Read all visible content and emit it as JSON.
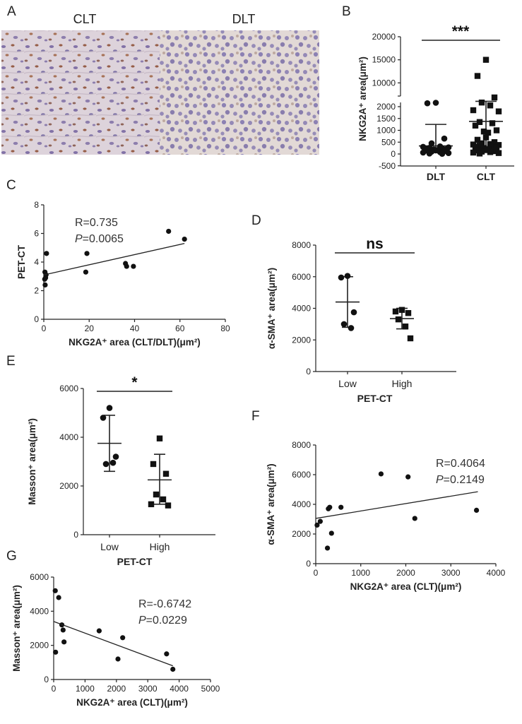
{
  "panels": {
    "A": {
      "letter": "A",
      "left_label": "CLT",
      "right_label": "DLT"
    },
    "B": {
      "letter": "B"
    },
    "C": {
      "letter": "C"
    },
    "D": {
      "letter": "D"
    },
    "E": {
      "letter": "E"
    },
    "F": {
      "letter": "F"
    },
    "G": {
      "letter": "G"
    }
  },
  "colors": {
    "ink": "#111111",
    "tissue_light": "#d8cfd6",
    "nuclei": "#6b5a9a",
    "stain_brown": "#8a4a2e"
  },
  "chart_data": [
    {
      "id": "B",
      "type": "scatter",
      "ylabel": "NKG2A⁺ area(μm²)",
      "categories": [
        "DLT",
        "CLT"
      ],
      "yticks_lower": [
        "-500",
        "0",
        "500",
        "1000",
        "1500",
        "2000"
      ],
      "yticks_upper": [
        "10000",
        "15000",
        "20000"
      ],
      "y_break": [
        2000,
        8000
      ],
      "significance": "***",
      "groups": [
        {
          "name": "DLT",
          "marker": "circle",
          "mean": 340,
          "sd_low": 70,
          "sd_high": 1250,
          "values": [
            3600,
            3400,
            650,
            450,
            320,
            300,
            280,
            260,
            240,
            220,
            200,
            190,
            170,
            150,
            140,
            120,
            100,
            80,
            60,
            40,
            20,
            10
          ]
        },
        {
          "name": "CLT",
          "marker": "square",
          "mean": 1380,
          "sd_low": 60,
          "sd_high": 4200,
          "values": [
            15000,
            11500,
            5800,
            3700,
            2500,
            1850,
            1800,
            1350,
            1300,
            1200,
            1000,
            950,
            900,
            700,
            600,
            500,
            450,
            420,
            400,
            380,
            350,
            320,
            300,
            280,
            250,
            200,
            180,
            150,
            120,
            100,
            80,
            60,
            40,
            20
          ]
        }
      ]
    },
    {
      "id": "C",
      "type": "scatter",
      "xlabel": "NKG2A⁺ area (CLT/DLT)(μm²)",
      "ylabel": "PET-CT",
      "xlim": [
        0,
        80
      ],
      "ylim": [
        0,
        8
      ],
      "xticks": [
        "0",
        "20",
        "40",
        "60",
        "80"
      ],
      "yticks": [
        "0",
        "2",
        "4",
        "6",
        "8"
      ],
      "annotation_r": "R=0.735",
      "annotation_p_symbol": "P",
      "annotation_p_value": "=0.0065",
      "fit": {
        "x": [
          0,
          62
        ],
        "y": [
          3.1,
          5.3
        ]
      },
      "points": [
        [
          0.5,
          3.3
        ],
        [
          0.8,
          2.9
        ],
        [
          1,
          3.1
        ],
        [
          0.6,
          2.4
        ],
        [
          1.2,
          4.6
        ],
        [
          0.4,
          2.8
        ],
        [
          19,
          4.6
        ],
        [
          18.5,
          3.3
        ],
        [
          36,
          3.9
        ],
        [
          36.5,
          3.7
        ],
        [
          39.5,
          3.7
        ],
        [
          55,
          6.15
        ],
        [
          62,
          5.6
        ]
      ]
    },
    {
      "id": "D",
      "type": "scatter",
      "xlabel": "PET-CT",
      "ylabel": "α-SMA⁺ area(μm²)",
      "ylim": [
        0,
        8000
      ],
      "yticks": [
        "0",
        "2000",
        "4000",
        "6000",
        "8000"
      ],
      "categories": [
        "Low",
        "High"
      ],
      "significance": "ns",
      "groups": [
        {
          "name": "Low",
          "marker": "circle",
          "mean": 4400,
          "sd_low": 2800,
          "sd_high": 6000,
          "values": [
            6050,
            5950,
            3750,
            3000,
            2750
          ]
        },
        {
          "name": "High",
          "marker": "square",
          "mean": 3350,
          "sd_low": 2700,
          "sd_high": 4000,
          "values": [
            3900,
            3800,
            3700,
            3300,
            2850,
            2100
          ]
        }
      ]
    },
    {
      "id": "E",
      "type": "scatter",
      "xlabel": "PET-CT",
      "ylabel": "Masson⁺ area(μm²)",
      "ylim": [
        0,
        6000
      ],
      "yticks": [
        "0",
        "2000",
        "4000",
        "6000"
      ],
      "categories": [
        "Low",
        "High"
      ],
      "significance": "*",
      "groups": [
        {
          "name": "Low",
          "marker": "circle",
          "mean": 3750,
          "sd_low": 2600,
          "sd_high": 4900,
          "values": [
            5200,
            4800,
            3200,
            2900,
            2950
          ]
        },
        {
          "name": "High",
          "marker": "square",
          "mean": 2250,
          "sd_low": 1250,
          "sd_high": 3300,
          "values": [
            3950,
            2900,
            2500,
            1650,
            1450,
            1200,
            1250
          ]
        }
      ]
    },
    {
      "id": "F",
      "type": "scatter",
      "xlabel": "NKG2A⁺ area (CLT)(μm²)",
      "ylabel": "α-SMA⁺ area(μm²)",
      "xlim": [
        0,
        4000
      ],
      "ylim": [
        0,
        8000
      ],
      "xticks": [
        "0",
        "1000",
        "2000",
        "3000",
        "4000"
      ],
      "yticks": [
        "0",
        "2000",
        "4000",
        "6000",
        "8000"
      ],
      "annotation_r": "R=0.4064",
      "annotation_p_symbol": "P",
      "annotation_p_value": "=0.2149",
      "fit": {
        "x": [
          0,
          3600
        ],
        "y": [
          3050,
          4850
        ]
      },
      "points": [
        [
          30,
          2600
        ],
        [
          100,
          2850
        ],
        [
          280,
          3700
        ],
        [
          310,
          3800
        ],
        [
          560,
          3800
        ],
        [
          350,
          2050
        ],
        [
          260,
          1050
        ],
        [
          1450,
          6050
        ],
        [
          2050,
          5850
        ],
        [
          2200,
          3050
        ],
        [
          3570,
          3600
        ]
      ]
    },
    {
      "id": "G",
      "type": "scatter",
      "xlabel": "NKG2A⁺ area (CLT)(μm²)",
      "ylabel": "Masson⁺ area(μm²)",
      "xlim": [
        0,
        5000
      ],
      "ylim": [
        0,
        6000
      ],
      "xticks": [
        "0",
        "1000",
        "2000",
        "3000",
        "4000",
        "5000"
      ],
      "yticks": [
        "0",
        "2000",
        "4000",
        "6000"
      ],
      "annotation_r": "R=-0.6742",
      "annotation_p_symbol": "P",
      "annotation_p_value": "=0.0229",
      "fit": {
        "x": [
          0,
          3800
        ],
        "y": [
          3400,
          800
        ]
      },
      "points": [
        [
          50,
          5200
        ],
        [
          160,
          4800
        ],
        [
          260,
          3200
        ],
        [
          300,
          2900
        ],
        [
          330,
          2200
        ],
        [
          60,
          1600
        ],
        [
          1450,
          2850
        ],
        [
          2200,
          2450
        ],
        [
          2050,
          1200
        ],
        [
          3600,
          1500
        ],
        [
          3800,
          600
        ]
      ]
    }
  ]
}
